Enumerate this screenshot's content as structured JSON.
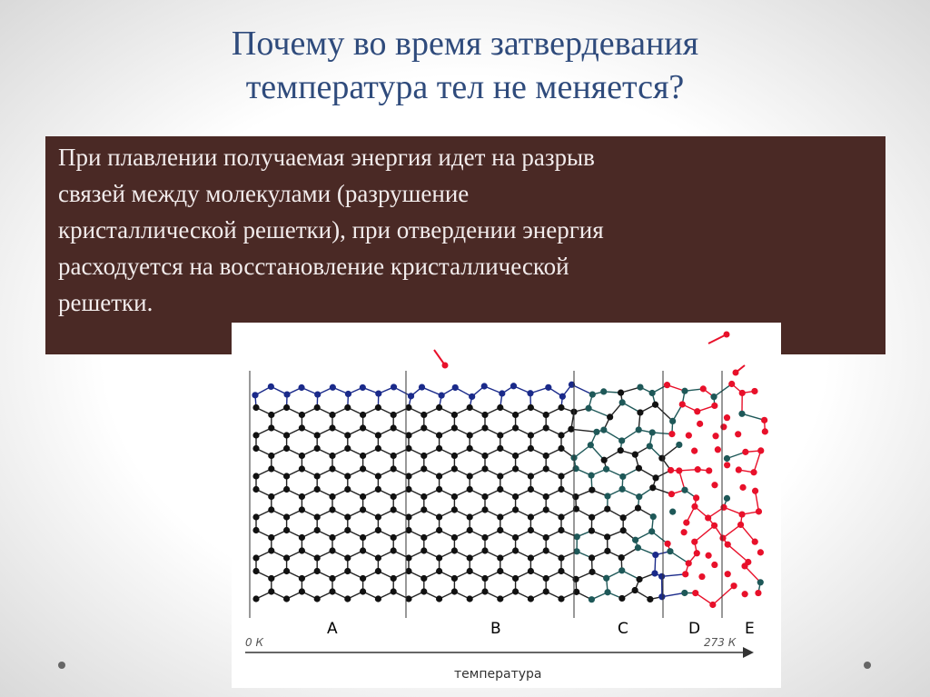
{
  "header": {
    "title_lines": [
      "Почему во время затвердевания",
      "температура тел не меняется?"
    ]
  },
  "body": {
    "lines": [
      "При плавлении получаемая энергия идет на разрыв",
      "связей между молекулами (разрушение",
      "кристаллической решетки), при отвердении энергия",
      "расходуется на восстановление кристаллической",
      "решетки."
    ]
  },
  "figure": {
    "stages": [
      "A",
      "B",
      "C",
      "D",
      "E"
    ],
    "axis_start": "0 К",
    "axis_end": "273 К",
    "axis_label": "температура"
  }
}
